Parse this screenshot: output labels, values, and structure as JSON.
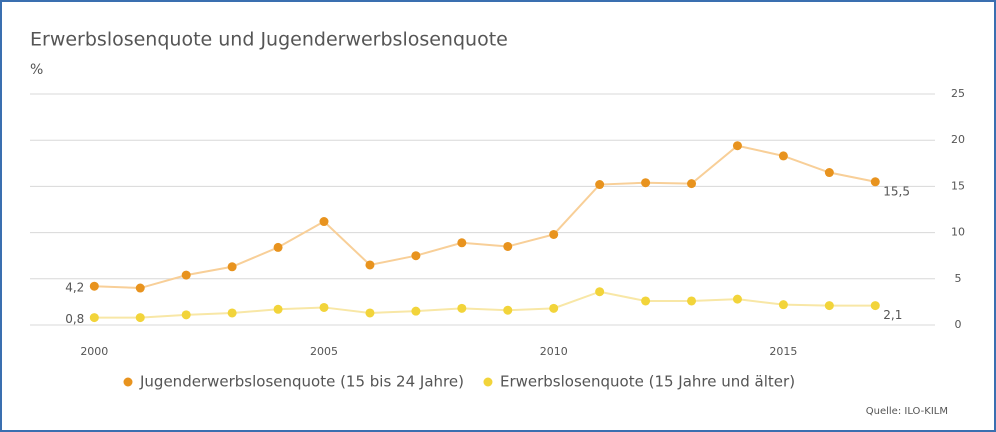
{
  "chart_data": {
    "type": "line",
    "title": "Erwerbslosenquote und Jugenderwerbslosenquote",
    "y_label": "%",
    "source": "Quelle: ILO-KILM",
    "x": [
      2000,
      2001,
      2002,
      2003,
      2004,
      2005,
      2006,
      2007,
      2008,
      2009,
      2010,
      2011,
      2012,
      2013,
      2014,
      2015,
      2016,
      2017
    ],
    "xlim": [
      1998.6,
      2018.3
    ],
    "xticks": [
      2000,
      2005,
      2010,
      2015
    ],
    "ylim": [
      0,
      25
    ],
    "yticks": [
      0,
      5,
      10,
      15,
      20,
      25
    ],
    "grid": true,
    "legend": "bottom",
    "series": [
      {
        "name": "Jugenderwerbslosenquote (15 bis 24 Jahre)",
        "color": "#e8931e",
        "line_color": "#f8cf98",
        "values": [
          4.2,
          4.0,
          5.4,
          6.3,
          8.4,
          11.2,
          6.5,
          7.5,
          8.9,
          8.5,
          9.8,
          15.2,
          15.4,
          15.3,
          19.4,
          18.3,
          16.5,
          15.5
        ],
        "value_labels": [
          "4,2",
          null,
          null,
          null,
          null,
          null,
          null,
          null,
          null,
          null,
          null,
          null,
          null,
          null,
          null,
          null,
          null,
          "15,5"
        ]
      },
      {
        "name": "Erwerbslosenquote (15 Jahre und älter)",
        "color": "#f2d43a",
        "line_color": "#f8e7a6",
        "values": [
          0.8,
          0.8,
          1.1,
          1.3,
          1.7,
          1.9,
          1.3,
          1.5,
          1.8,
          1.6,
          1.8,
          3.6,
          2.6,
          2.6,
          2.8,
          2.2,
          2.1,
          2.1
        ],
        "value_labels": [
          "0,8",
          null,
          null,
          null,
          null,
          null,
          null,
          null,
          null,
          null,
          null,
          null,
          null,
          null,
          null,
          null,
          null,
          "2,1"
        ]
      }
    ]
  }
}
